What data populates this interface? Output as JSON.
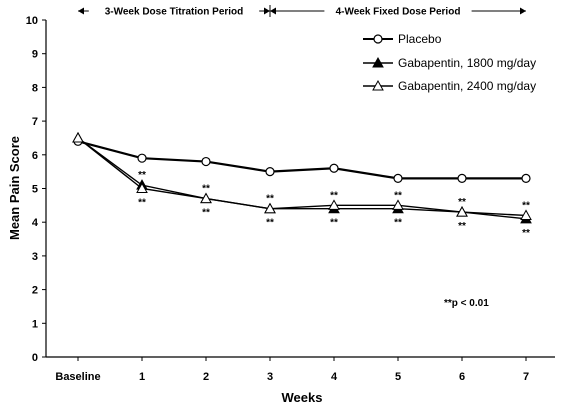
{
  "chart_data": {
    "type": "line",
    "categories": [
      "Baseline",
      "1",
      "2",
      "3",
      "4",
      "5",
      "6",
      "7"
    ],
    "xlabel": "Weeks",
    "ylabel": "Mean Pain Score",
    "ylim": [
      0,
      10
    ],
    "yticks": [
      "0",
      "1",
      "2",
      "3",
      "4",
      "5",
      "6",
      "7",
      "8",
      "9",
      "10"
    ],
    "periods": [
      {
        "label": "3-Week Dose Titration Period",
        "start": 0,
        "end": 3
      },
      {
        "label": "4-Week Fixed Dose Period",
        "start": 3,
        "end": 7
      }
    ],
    "series": [
      {
        "name": "Placebo",
        "marker": "open-circle",
        "values": [
          6.4,
          5.9,
          5.8,
          5.5,
          5.6,
          5.3,
          5.3,
          5.3
        ]
      },
      {
        "name": "Gabapentin, 1800 mg/day",
        "marker": "filled-triangle",
        "values": [
          6.5,
          5.1,
          4.7,
          4.4,
          4.4,
          4.4,
          4.3,
          4.1
        ]
      },
      {
        "name": "Gabapentin, 2400 mg/day",
        "marker": "open-triangle",
        "values": [
          6.5,
          5.0,
          4.7,
          4.4,
          4.5,
          4.5,
          4.3,
          4.2
        ]
      }
    ],
    "significance": {
      "symbol": "**",
      "above_points": [
        1,
        2,
        3,
        4,
        5,
        6,
        7
      ],
      "below_points": [
        1,
        2,
        3,
        4,
        5,
        6,
        7
      ]
    },
    "note": "**p < 0.01",
    "legend_position": "top-right",
    "grid": false
  }
}
